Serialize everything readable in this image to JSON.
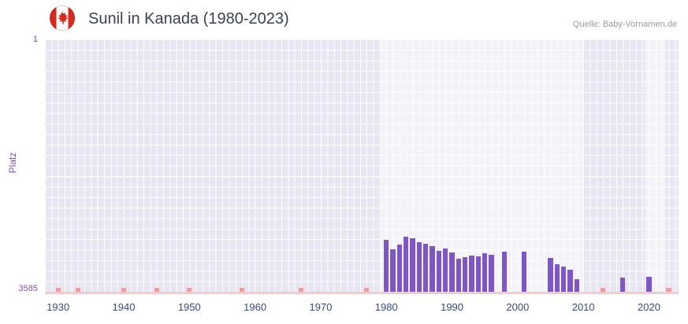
{
  "header": {
    "title": "Sunil in Kanada (1980-2023)",
    "source": "Quelle: Baby-Vornamen.de",
    "flag": "canada-flag-icon"
  },
  "chart_data": {
    "type": "bar",
    "title": "Sunil in Kanada (1980-2023)",
    "xlabel": "",
    "ylabel": "Platz",
    "y_axis": {
      "top_label": "1",
      "bottom_label": "3585",
      "min": 1,
      "max": 3585,
      "inverted": true
    },
    "x_range": [
      1928,
      2024.5
    ],
    "x_ticks": [
      1930,
      1940,
      1950,
      1960,
      1970,
      1980,
      1990,
      2000,
      2010,
      2020
    ],
    "grid": true,
    "legend": "none",
    "series": [
      {
        "name": "Platz",
        "points": [
          {
            "year": 1980,
            "rank": 2850
          },
          {
            "year": 1981,
            "rank": 2980
          },
          {
            "year": 1982,
            "rank": 2920
          },
          {
            "year": 1983,
            "rank": 2800
          },
          {
            "year": 1984,
            "rank": 2830
          },
          {
            "year": 1985,
            "rank": 2880
          },
          {
            "year": 1986,
            "rank": 2900
          },
          {
            "year": 1987,
            "rank": 2940
          },
          {
            "year": 1988,
            "rank": 3000
          },
          {
            "year": 1989,
            "rank": 2970
          },
          {
            "year": 1990,
            "rank": 3030
          },
          {
            "year": 1991,
            "rank": 3120
          },
          {
            "year": 1992,
            "rank": 3090
          },
          {
            "year": 1993,
            "rank": 3070
          },
          {
            "year": 1994,
            "rank": 3080
          },
          {
            "year": 1995,
            "rank": 3040
          },
          {
            "year": 1996,
            "rank": 3060
          },
          {
            "year": 1998,
            "rank": 3010
          },
          {
            "year": 2001,
            "rank": 3010
          },
          {
            "year": 2005,
            "rank": 3100
          },
          {
            "year": 2006,
            "rank": 3190
          },
          {
            "year": 2007,
            "rank": 3230
          },
          {
            "year": 2008,
            "rank": 3270
          },
          {
            "year": 2009,
            "rank": 3410
          },
          {
            "year": 2016,
            "rank": 3380
          },
          {
            "year": 2020,
            "rank": 3370
          }
        ]
      }
    ],
    "no_rank_years": [
      1930,
      1933,
      1940,
      1945,
      1950,
      1958,
      1967,
      1977,
      2013,
      2023
    ],
    "highlight_bands": [
      [
        1979,
        2010
      ],
      [
        2019.5,
        2022.5
      ]
    ],
    "colors": {
      "bar": "#7e57c2",
      "plot_bg": "#e9e6f3",
      "band": "rgba(255,255,255,0.47)",
      "grid": "#ffffff",
      "axis_line": "#f6c9cb",
      "no_rank_mark": "#ef8f8f",
      "y_tick": "#7b52a5",
      "x_tick": "#3b4a7e",
      "title": "#394250",
      "source": "#9a9ba1",
      "flag_red": "#d52b1e"
    }
  }
}
